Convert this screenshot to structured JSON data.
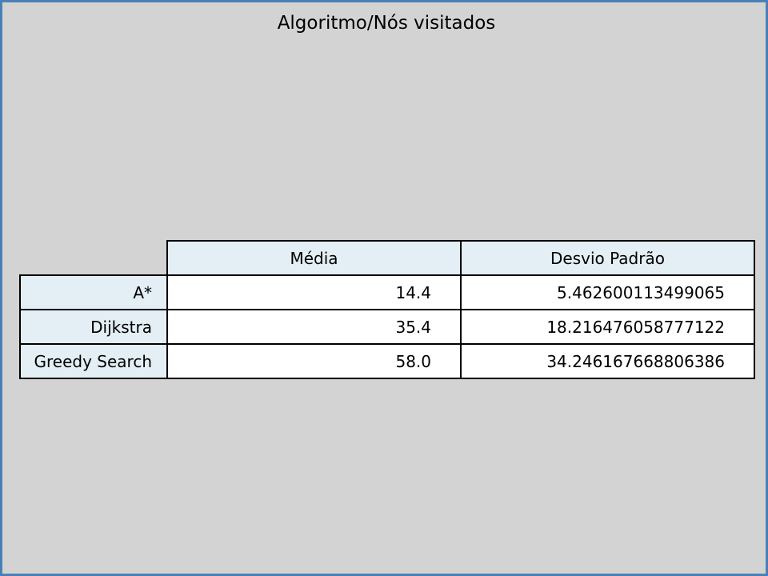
{
  "chart_data": {
    "type": "table",
    "title": "Algoritmo/Nós visitados",
    "columns": [
      "Média",
      "Desvio Padrão"
    ],
    "rows": [
      {
        "label": "A*",
        "values": [
          "14.4",
          "5.462600113499065"
        ]
      },
      {
        "label": "Dijkstra",
        "values": [
          "35.4",
          "18.216476058777122"
        ]
      },
      {
        "label": "Greedy Search",
        "values": [
          "58.0",
          "34.246167668806386"
        ]
      }
    ]
  },
  "colors": {
    "background": "#d3d3d3",
    "frame_border": "#4a81b4",
    "header_fill": "#e3eef5",
    "cell_fill": "#ffffff"
  }
}
